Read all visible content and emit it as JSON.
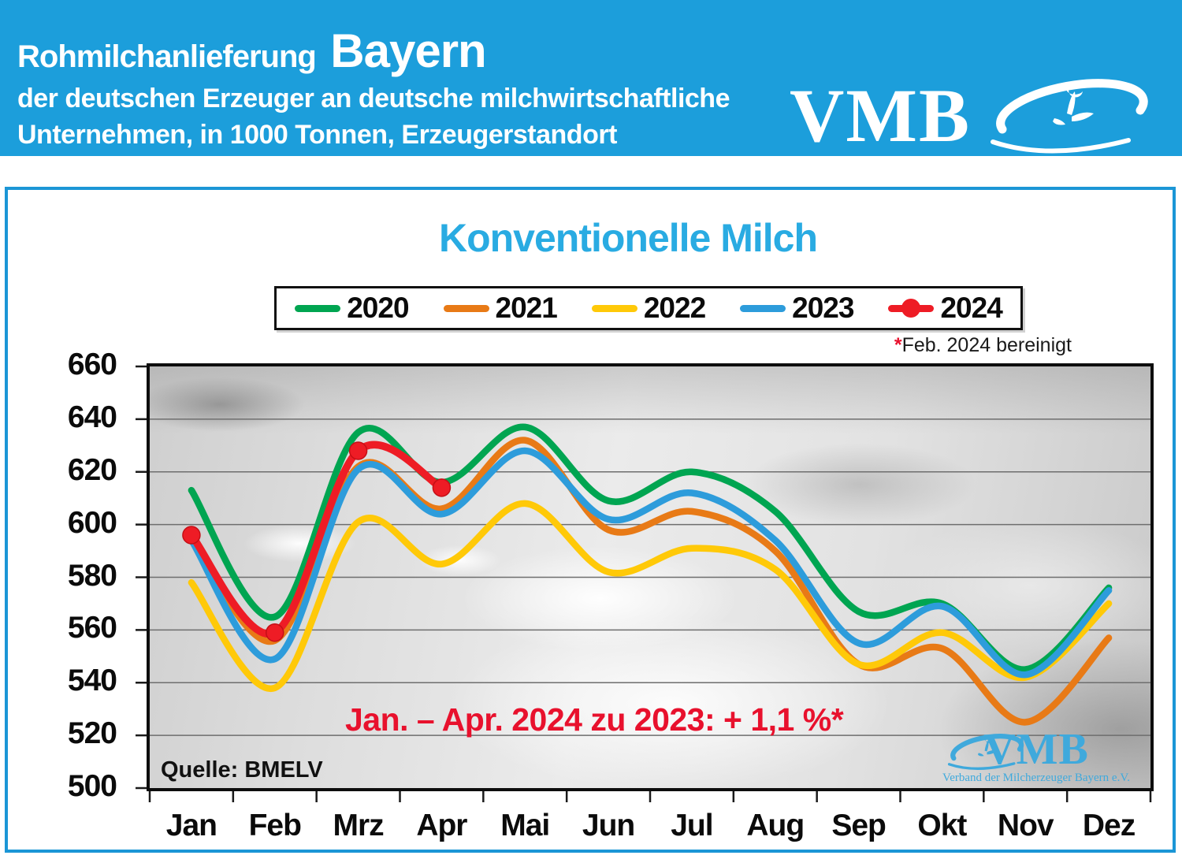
{
  "header": {
    "title_prefix": "Rohmilchanlieferung",
    "title_region": "Bayern",
    "subtitle_line1": "der deutschen Erzeuger an deutsche milchwirtschaftliche",
    "subtitle_line2": "Unternehmen, in 1000 Tonnen, Erzeugerstandort",
    "logo_text": "VMB",
    "bg_color": "#1c9edb"
  },
  "chart_panel": {
    "title": "Konventionelle Milch",
    "title_color": "#29abe2",
    "footnote_star": "*",
    "footnote_text": "Feb. 2024 bereinigt",
    "annotation": "Jan. – Apr. 2024 zu 2023: + 1,1 %*",
    "source": "Quelle: BMELV",
    "watermark_logo_text": "VMB",
    "watermark_tagline": "Verband der Milcherzeuger Bayern e.V."
  },
  "chart_data": {
    "type": "line",
    "title": "Konventionelle Milch",
    "unit": "1000 Tonnen",
    "categories": [
      "Jan",
      "Feb",
      "Mrz",
      "Apr",
      "Mai",
      "Jun",
      "Jul",
      "Aug",
      "Sep",
      "Okt",
      "Nov",
      "Dez"
    ],
    "ylim": [
      500,
      660
    ],
    "ytick_step": 20,
    "yticks": [
      660,
      640,
      620,
      600,
      580,
      560,
      540,
      520,
      500
    ],
    "grid": true,
    "legend_position": "top",
    "smooth": true,
    "series": [
      {
        "name": "2020",
        "color": "#00a551",
        "values": [
          613,
          565,
          635,
          616,
          637,
          609,
          620,
          605,
          567,
          570,
          545,
          576
        ]
      },
      {
        "name": "2021",
        "color": "#e87a16",
        "values": [
          595,
          556,
          622,
          606,
          632,
          598,
          605,
          590,
          547,
          553,
          525,
          557
        ]
      },
      {
        "name": "2022",
        "color": "#ffc908",
        "values": [
          578,
          538,
          601,
          585,
          608,
          582,
          591,
          583,
          547,
          559,
          542,
          570
        ]
      },
      {
        "name": "2023",
        "color": "#2d9cdb",
        "values": [
          594,
          549,
          621,
          604,
          628,
          602,
          612,
          594,
          555,
          569,
          543,
          575
        ]
      },
      {
        "name": "2024",
        "color": "#ee1c25",
        "marker": "circle",
        "values": [
          596,
          559,
          628,
          614,
          null,
          null,
          null,
          null,
          null,
          null,
          null,
          null
        ]
      }
    ]
  }
}
